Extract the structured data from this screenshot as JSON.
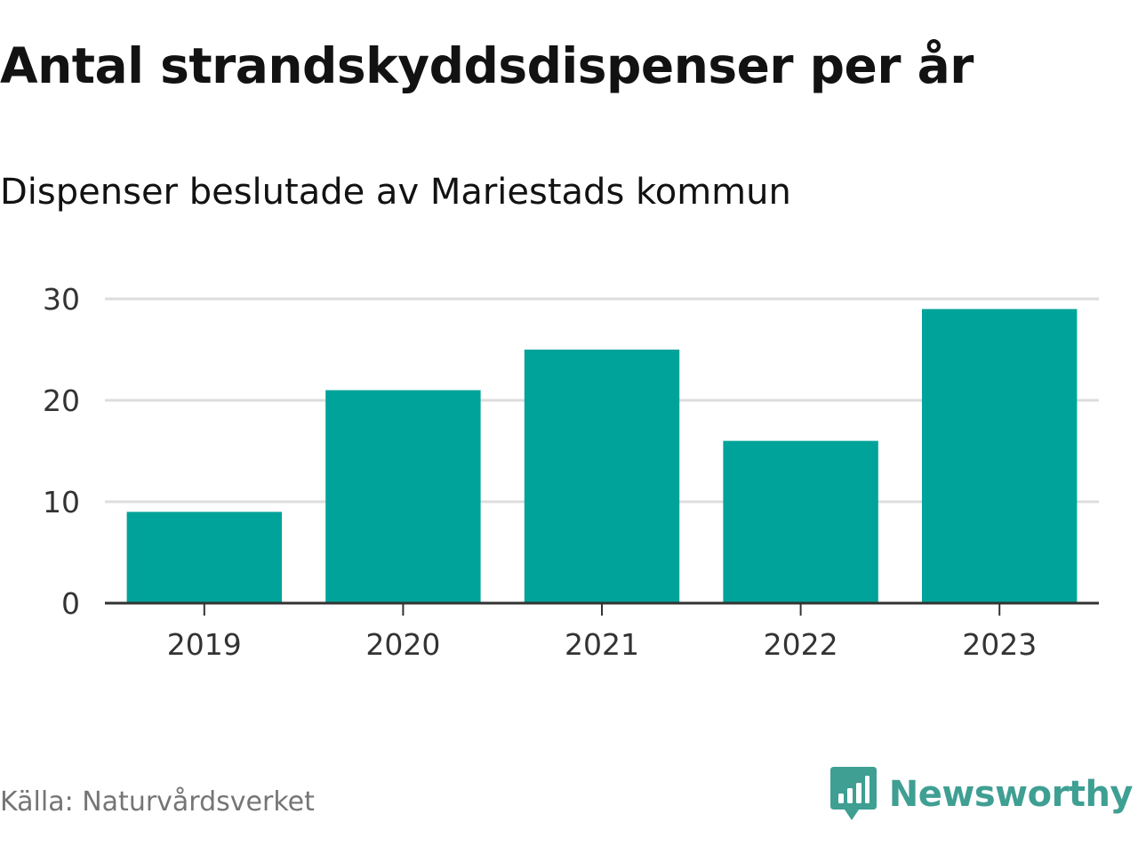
{
  "title": "Antal strandskyddsdispenser per år",
  "subtitle": "Dispenser beslutade av Mariestads kommun",
  "source": "Källa: Naturvårdsverket",
  "brand": {
    "name": "Newsworthy",
    "icon": "newsworthy-logo-icon",
    "color": "#3f9f93"
  },
  "chart_data": {
    "type": "bar",
    "title": "Antal strandskyddsdispenser per år",
    "subtitle": "Dispenser beslutade av Mariestads kommun",
    "categories": [
      "2019",
      "2020",
      "2021",
      "2022",
      "2023"
    ],
    "values": [
      9,
      21,
      25,
      16,
      29
    ],
    "xlabel": "",
    "ylabel": "",
    "ylim": [
      0,
      30
    ],
    "yticks": [
      0,
      10,
      20,
      30
    ],
    "grid": true,
    "bar_color": "#00a39a",
    "legend": "none"
  }
}
